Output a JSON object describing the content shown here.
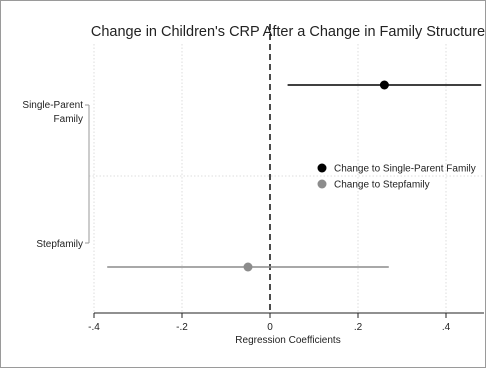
{
  "chart_data": {
    "type": "scatter",
    "title": "Change in Children's CRP After a Change in Family Structure",
    "xlabel": "Regression Coefficients",
    "ylabel": "",
    "xlim": [
      -0.4,
      0.48
    ],
    "x_ticks": [
      {
        "value": -0.4,
        "label": "-.4"
      },
      {
        "value": -0.2,
        "label": "-.2"
      },
      {
        "value": 0,
        "label": "0"
      },
      {
        "value": 0.2,
        "label": ".2"
      },
      {
        "value": 0.4,
        "label": ".4"
      }
    ],
    "categories": [
      "Single-Parent Family",
      "Stepfamily"
    ],
    "category_labels": [
      [
        "Single-Parent",
        "Family"
      ],
      [
        "Stepfamily"
      ]
    ],
    "reference_line": 0,
    "grid": true,
    "legend_position": "right",
    "series": [
      {
        "name": "Change to Single-Parent Family",
        "color": "#000000",
        "points": [
          {
            "category": "Single-Parent Family",
            "estimate": 0.26,
            "ci_low": 0.04,
            "ci_high": 0.48
          }
        ]
      },
      {
        "name": "Change to Stepfamily",
        "color": "#8c8c8c",
        "points": [
          {
            "category": "Stepfamily",
            "estimate": -0.05,
            "ci_low": -0.37,
            "ci_high": 0.27
          }
        ]
      }
    ]
  }
}
